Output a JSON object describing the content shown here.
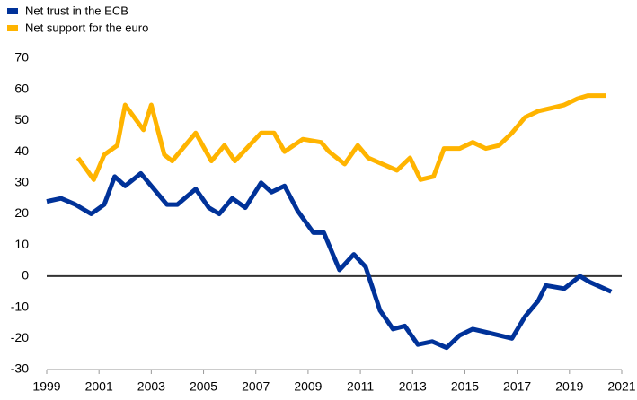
{
  "chart_data": {
    "type": "line",
    "xlim": [
      1999,
      2021
    ],
    "xticks": [
      1999,
      2001,
      2003,
      2005,
      2007,
      2009,
      2011,
      2013,
      2015,
      2017,
      2019,
      2021
    ],
    "ylim": [
      -30,
      70
    ],
    "yticks": [
      -30,
      -20,
      -10,
      0,
      10,
      20,
      30,
      40,
      50,
      60,
      70
    ],
    "legend": "top-left",
    "series": [
      {
        "name": "Net trust in the ECB",
        "color": "#003299",
        "x": [
          1999.0,
          1999.55,
          2000.1,
          2000.7,
          2001.2,
          2001.6,
          2002.0,
          2002.6,
          2003.1,
          2003.6,
          2004.0,
          2004.7,
          2005.2,
          2005.6,
          2006.1,
          2006.6,
          2007.2,
          2007.6,
          2008.1,
          2008.6,
          2009.2,
          2009.6,
          2010.2,
          2010.75,
          2011.2,
          2011.75,
          2012.25,
          2012.7,
          2013.2,
          2013.75,
          2014.3,
          2014.8,
          2015.3,
          2015.8,
          2016.3,
          2016.8,
          2017.3,
          2017.8,
          2018.1,
          2018.8,
          2019.4,
          2019.8,
          2020.6
        ],
        "values": [
          24,
          25,
          23,
          20,
          23,
          32,
          29,
          33,
          28,
          23,
          23,
          28,
          22,
          20,
          25,
          22,
          30,
          27,
          29,
          21,
          14,
          14,
          2,
          7,
          3,
          -11,
          -17,
          -16,
          -22,
          -21,
          -23,
          -19,
          -17,
          -18,
          -19,
          -20,
          -13,
          -8,
          -3,
          -4,
          0,
          -2,
          -5
        ]
      },
      {
        "name": "Net support for the euro",
        "color": "#ffb400",
        "x": [
          2000.2,
          2000.8,
          2001.2,
          2001.7,
          2002.0,
          2002.7,
          2003.0,
          2003.5,
          2003.8,
          2004.7,
          2005.3,
          2005.8,
          2006.2,
          2007.2,
          2007.7,
          2008.1,
          2008.8,
          2009.5,
          2009.8,
          2010.4,
          2010.9,
          2011.3,
          2012.4,
          2012.9,
          2013.3,
          2013.8,
          2014.2,
          2014.8,
          2015.3,
          2015.8,
          2016.3,
          2016.8,
          2017.3,
          2017.8,
          2018.3,
          2018.8,
          2019.3,
          2019.7,
          2020.4
        ],
        "values": [
          38,
          31,
          39,
          42,
          55,
          47,
          55,
          39,
          37,
          46,
          37,
          42,
          37,
          46,
          46,
          40,
          44,
          43,
          40,
          36,
          42,
          38,
          34,
          38,
          31,
          32,
          41,
          41,
          43,
          41,
          42,
          46,
          51,
          53,
          54,
          55,
          57,
          58,
          58
        ]
      }
    ]
  }
}
